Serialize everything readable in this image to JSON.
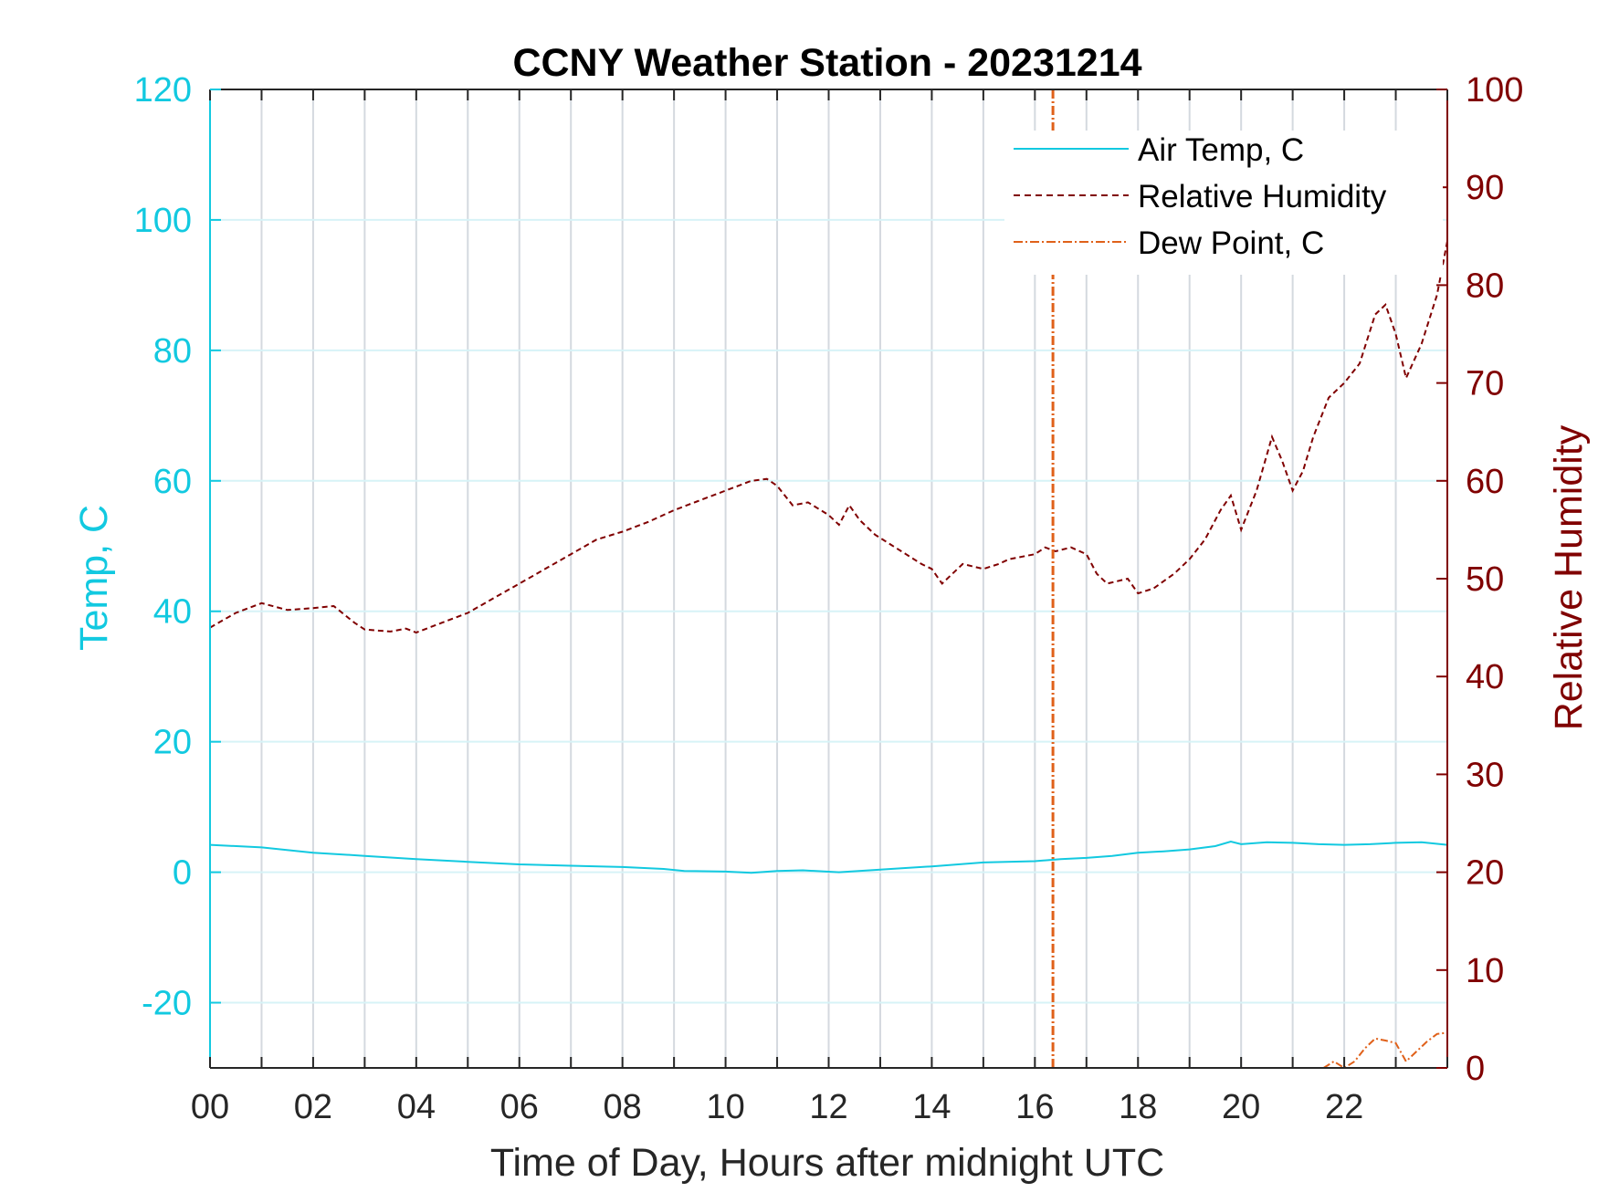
{
  "chart_data": {
    "type": "line",
    "title": "CCNY Weather Station - 20231214",
    "xlabel": "Time of Day, Hours after midnight UTC",
    "ylabel_left": "Temp, C",
    "ylabel_right": "Relative Humidity",
    "xlim": [
      0,
      24
    ],
    "ylim_left": [
      -30,
      120
    ],
    "ylim_right": [
      0,
      100
    ],
    "x_ticks": [
      0,
      2,
      4,
      6,
      8,
      10,
      12,
      14,
      16,
      18,
      20,
      22
    ],
    "x_tick_labels": [
      "00",
      "02",
      "04",
      "06",
      "08",
      "10",
      "12",
      "14",
      "16",
      "18",
      "20",
      "22"
    ],
    "y_left_ticks": [
      -20,
      0,
      20,
      40,
      60,
      80,
      100,
      120
    ],
    "y_left_tick_labels": [
      "-20",
      "0",
      "20",
      "40",
      "60",
      "80",
      "100",
      "120"
    ],
    "y_right_ticks": [
      0,
      10,
      20,
      30,
      40,
      50,
      60,
      70,
      80,
      90,
      100
    ],
    "y_right_tick_labels": [
      "0",
      "10",
      "20",
      "30",
      "40",
      "50",
      "60",
      "70",
      "80",
      "90",
      "100"
    ],
    "grid": "vertical lines every 1 hour; light horizontal lines at left-axis ticks",
    "legend_position": "top-right",
    "colors": {
      "temp": "#12c9e0",
      "humidity": "#800000",
      "dewpoint": "#e0611a",
      "grid_vertical": "#d4d9df",
      "grid_horizontal": "#d7f3f7",
      "axis": "#262626"
    },
    "series": [
      {
        "name": "Air Temp, C",
        "axis": "left",
        "style": "solid",
        "x": [
          0,
          1,
          2,
          3,
          4,
          5,
          6,
          7,
          8,
          8.8,
          9.2,
          10,
          10.5,
          11,
          11.5,
          12.2,
          13,
          14,
          15,
          16,
          16.5,
          17,
          17.5,
          18,
          18.5,
          19,
          19.5,
          19.8,
          20,
          20.5,
          21,
          21.5,
          22,
          22.5,
          23,
          23.5,
          24
        ],
        "y": [
          4.2,
          3.8,
          3.0,
          2.5,
          2.0,
          1.6,
          1.2,
          1.0,
          0.8,
          0.5,
          0.2,
          0.1,
          -0.1,
          0.2,
          0.3,
          0.0,
          0.4,
          0.9,
          1.5,
          1.7,
          2.0,
          2.2,
          2.5,
          3.0,
          3.2,
          3.5,
          4.0,
          4.7,
          4.3,
          4.6,
          4.5,
          4.3,
          4.2,
          4.3,
          4.5,
          4.6,
          4.2
        ]
      },
      {
        "name": "Relative Humidity",
        "axis": "right",
        "style": "dashed",
        "x": [
          0,
          0.5,
          1.0,
          1.5,
          2.0,
          2.4,
          2.8,
          3.0,
          3.5,
          3.8,
          4.0,
          4.5,
          5.0,
          5.5,
          6.0,
          6.5,
          7.0,
          7.5,
          8.0,
          8.5,
          9.0,
          9.5,
          10.0,
          10.5,
          10.8,
          11.0,
          11.3,
          11.6,
          12.0,
          12.2,
          12.4,
          12.6,
          12.9,
          13.2,
          13.5,
          13.8,
          14.0,
          14.2,
          14.4,
          14.6,
          15.0,
          15.3,
          15.5,
          16.0,
          16.2,
          16.4,
          16.7,
          17.0,
          17.2,
          17.4,
          17.8,
          18.0,
          18.3,
          18.7,
          19.0,
          19.3,
          19.6,
          19.8,
          20.0,
          20.3,
          20.6,
          20.8,
          21.0,
          21.2,
          21.4,
          21.7,
          22.0,
          22.3,
          22.6,
          22.8,
          23.0,
          23.2,
          23.5,
          23.8,
          24.0
        ],
        "y": [
          45.0,
          46.5,
          47.5,
          46.8,
          47.0,
          47.2,
          45.5,
          44.8,
          44.6,
          44.9,
          44.5,
          45.5,
          46.5,
          48.0,
          49.5,
          51.0,
          52.5,
          54.0,
          54.8,
          55.8,
          57.0,
          58.0,
          59.0,
          60.0,
          60.2,
          59.5,
          57.5,
          57.8,
          56.5,
          55.5,
          57.5,
          56.0,
          54.5,
          53.5,
          52.5,
          51.5,
          51.0,
          49.5,
          50.5,
          51.5,
          51.0,
          51.5,
          52.0,
          52.5,
          53.2,
          52.8,
          53.2,
          52.5,
          50.5,
          49.5,
          50.0,
          48.5,
          49.0,
          50.5,
          52.0,
          54.0,
          57.0,
          58.5,
          55.0,
          59.0,
          64.5,
          62.0,
          59.0,
          61.0,
          64.5,
          68.5,
          70.0,
          72.0,
          77.0,
          78.0,
          75.0,
          70.5,
          74.0,
          79.0,
          84.5
        ]
      },
      {
        "name": "Dew Point, C",
        "axis": "left",
        "style": "dash-dot",
        "vertical_spike_x": 16.35,
        "x": [
          21.6,
          21.8,
          22.0,
          22.2,
          22.4,
          22.6,
          22.8,
          23.0,
          23.2,
          23.4,
          23.6,
          23.8,
          24.0
        ],
        "y": [
          -30.0,
          -29.0,
          -30.0,
          -29.0,
          -27.0,
          -25.5,
          -25.8,
          -26.2,
          -29.0,
          -27.5,
          -26.0,
          -24.8,
          -24.6
        ]
      }
    ]
  }
}
